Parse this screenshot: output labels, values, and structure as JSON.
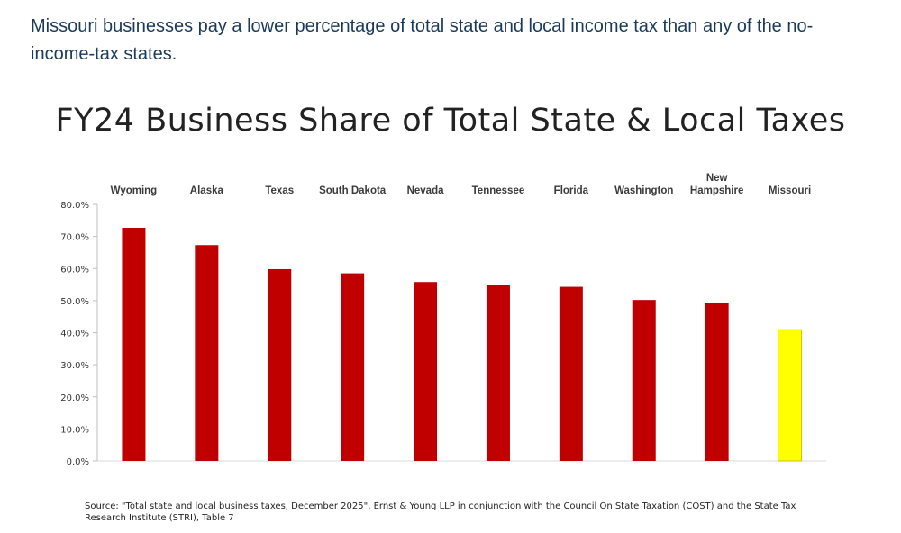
{
  "intro_text": "Missouri businesses pay a lower percentage of total state and local income tax than any of the no-income-tax states.",
  "chart_data": {
    "type": "bar",
    "title": "FY24 Business Share of Total State & Local Taxes",
    "categories": [
      "Wyoming",
      "Alaska",
      "Texas",
      "South Dakota",
      "Nevada",
      "Tennessee",
      "Florida",
      "Washington",
      "New Hampshire",
      "Missouri"
    ],
    "category_label_lines": [
      [
        "Wyoming"
      ],
      [
        "Alaska"
      ],
      [
        "Texas"
      ],
      [
        "South Dakota"
      ],
      [
        "Nevada"
      ],
      [
        "Tennessee"
      ],
      [
        "Florida"
      ],
      [
        "Washington"
      ],
      [
        "New",
        "Hampshire"
      ],
      [
        "Missouri"
      ]
    ],
    "values": [
      72.7,
      67.3,
      59.8,
      58.5,
      55.8,
      54.9,
      54.3,
      50.2,
      49.3,
      40.9
    ],
    "colors": [
      "#c00000",
      "#c00000",
      "#c00000",
      "#c00000",
      "#c00000",
      "#c00000",
      "#c00000",
      "#c00000",
      "#c00000",
      "#ffff00"
    ],
    "y_ticks": [
      "0.0%",
      "10.0%",
      "20.0%",
      "30.0%",
      "40.0%",
      "50.0%",
      "60.0%",
      "70.0%",
      "80.0%"
    ],
    "ylim": [
      0,
      80
    ],
    "xlabel": "",
    "ylabel": "",
    "legend": "none",
    "grid": false,
    "category_label_position": "top",
    "source": "Source: \"Total state and local business taxes, December 2025\", Ernst & Young LLP in conjunction with the Council On State Taxation (COST) and the State Tax Research Institute (STRI), Table 7"
  }
}
